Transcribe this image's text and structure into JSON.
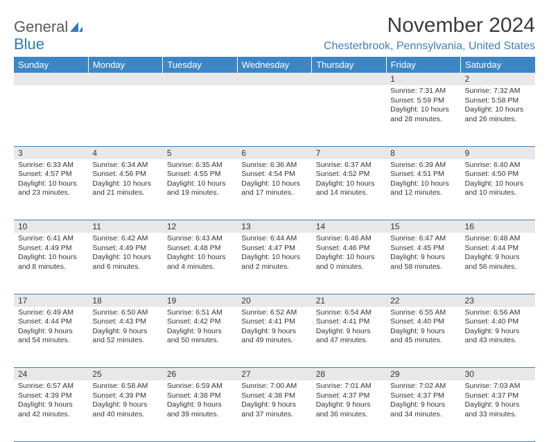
{
  "logo": {
    "gray": "General",
    "blue": "Blue"
  },
  "title": "November 2024",
  "location": "Chesterbrook, Pennsylvania, United States",
  "colors": {
    "header_bg": "#3d86c6",
    "header_fg": "#ffffff",
    "daynum_bg": "#e8e8e8",
    "divider": "#3d7fb8",
    "logo_gray": "#5a5a5a",
    "logo_blue": "#2d7bc0",
    "location_color": "#3d7fb8",
    "text": "#333333",
    "bg": "#ffffff"
  },
  "weekdays": [
    "Sunday",
    "Monday",
    "Tuesday",
    "Wednesday",
    "Thursday",
    "Friday",
    "Saturday"
  ],
  "weeks": [
    [
      {
        "num": "",
        "sunrise": "",
        "sunset": "",
        "daylight": ""
      },
      {
        "num": "",
        "sunrise": "",
        "sunset": "",
        "daylight": ""
      },
      {
        "num": "",
        "sunrise": "",
        "sunset": "",
        "daylight": ""
      },
      {
        "num": "",
        "sunrise": "",
        "sunset": "",
        "daylight": ""
      },
      {
        "num": "",
        "sunrise": "",
        "sunset": "",
        "daylight": ""
      },
      {
        "num": "1",
        "sunrise": "Sunrise: 7:31 AM",
        "sunset": "Sunset: 5:59 PM",
        "daylight": "Daylight: 10 hours and 28 minutes."
      },
      {
        "num": "2",
        "sunrise": "Sunrise: 7:32 AM",
        "sunset": "Sunset: 5:58 PM",
        "daylight": "Daylight: 10 hours and 26 minutes."
      }
    ],
    [
      {
        "num": "3",
        "sunrise": "Sunrise: 6:33 AM",
        "sunset": "Sunset: 4:57 PM",
        "daylight": "Daylight: 10 hours and 23 minutes."
      },
      {
        "num": "4",
        "sunrise": "Sunrise: 6:34 AM",
        "sunset": "Sunset: 4:56 PM",
        "daylight": "Daylight: 10 hours and 21 minutes."
      },
      {
        "num": "5",
        "sunrise": "Sunrise: 6:35 AM",
        "sunset": "Sunset: 4:55 PM",
        "daylight": "Daylight: 10 hours and 19 minutes."
      },
      {
        "num": "6",
        "sunrise": "Sunrise: 6:36 AM",
        "sunset": "Sunset: 4:54 PM",
        "daylight": "Daylight: 10 hours and 17 minutes."
      },
      {
        "num": "7",
        "sunrise": "Sunrise: 6:37 AM",
        "sunset": "Sunset: 4:52 PM",
        "daylight": "Daylight: 10 hours and 14 minutes."
      },
      {
        "num": "8",
        "sunrise": "Sunrise: 6:39 AM",
        "sunset": "Sunset: 4:51 PM",
        "daylight": "Daylight: 10 hours and 12 minutes."
      },
      {
        "num": "9",
        "sunrise": "Sunrise: 6:40 AM",
        "sunset": "Sunset: 4:50 PM",
        "daylight": "Daylight: 10 hours and 10 minutes."
      }
    ],
    [
      {
        "num": "10",
        "sunrise": "Sunrise: 6:41 AM",
        "sunset": "Sunset: 4:49 PM",
        "daylight": "Daylight: 10 hours and 8 minutes."
      },
      {
        "num": "11",
        "sunrise": "Sunrise: 6:42 AM",
        "sunset": "Sunset: 4:49 PM",
        "daylight": "Daylight: 10 hours and 6 minutes."
      },
      {
        "num": "12",
        "sunrise": "Sunrise: 6:43 AM",
        "sunset": "Sunset: 4:48 PM",
        "daylight": "Daylight: 10 hours and 4 minutes."
      },
      {
        "num": "13",
        "sunrise": "Sunrise: 6:44 AM",
        "sunset": "Sunset: 4:47 PM",
        "daylight": "Daylight: 10 hours and 2 minutes."
      },
      {
        "num": "14",
        "sunrise": "Sunrise: 6:46 AM",
        "sunset": "Sunset: 4:46 PM",
        "daylight": "Daylight: 10 hours and 0 minutes."
      },
      {
        "num": "15",
        "sunrise": "Sunrise: 6:47 AM",
        "sunset": "Sunset: 4:45 PM",
        "daylight": "Daylight: 9 hours and 58 minutes."
      },
      {
        "num": "16",
        "sunrise": "Sunrise: 6:48 AM",
        "sunset": "Sunset: 4:44 PM",
        "daylight": "Daylight: 9 hours and 56 minutes."
      }
    ],
    [
      {
        "num": "17",
        "sunrise": "Sunrise: 6:49 AM",
        "sunset": "Sunset: 4:44 PM",
        "daylight": "Daylight: 9 hours and 54 minutes."
      },
      {
        "num": "18",
        "sunrise": "Sunrise: 6:50 AM",
        "sunset": "Sunset: 4:43 PM",
        "daylight": "Daylight: 9 hours and 52 minutes."
      },
      {
        "num": "19",
        "sunrise": "Sunrise: 6:51 AM",
        "sunset": "Sunset: 4:42 PM",
        "daylight": "Daylight: 9 hours and 50 minutes."
      },
      {
        "num": "20",
        "sunrise": "Sunrise: 6:52 AM",
        "sunset": "Sunset: 4:41 PM",
        "daylight": "Daylight: 9 hours and 49 minutes."
      },
      {
        "num": "21",
        "sunrise": "Sunrise: 6:54 AM",
        "sunset": "Sunset: 4:41 PM",
        "daylight": "Daylight: 9 hours and 47 minutes."
      },
      {
        "num": "22",
        "sunrise": "Sunrise: 6:55 AM",
        "sunset": "Sunset: 4:40 PM",
        "daylight": "Daylight: 9 hours and 45 minutes."
      },
      {
        "num": "23",
        "sunrise": "Sunrise: 6:56 AM",
        "sunset": "Sunset: 4:40 PM",
        "daylight": "Daylight: 9 hours and 43 minutes."
      }
    ],
    [
      {
        "num": "24",
        "sunrise": "Sunrise: 6:57 AM",
        "sunset": "Sunset: 4:39 PM",
        "daylight": "Daylight: 9 hours and 42 minutes."
      },
      {
        "num": "25",
        "sunrise": "Sunrise: 6:58 AM",
        "sunset": "Sunset: 4:39 PM",
        "daylight": "Daylight: 9 hours and 40 minutes."
      },
      {
        "num": "26",
        "sunrise": "Sunrise: 6:59 AM",
        "sunset": "Sunset: 4:38 PM",
        "daylight": "Daylight: 9 hours and 39 minutes."
      },
      {
        "num": "27",
        "sunrise": "Sunrise: 7:00 AM",
        "sunset": "Sunset: 4:38 PM",
        "daylight": "Daylight: 9 hours and 37 minutes."
      },
      {
        "num": "28",
        "sunrise": "Sunrise: 7:01 AM",
        "sunset": "Sunset: 4:37 PM",
        "daylight": "Daylight: 9 hours and 36 minutes."
      },
      {
        "num": "29",
        "sunrise": "Sunrise: 7:02 AM",
        "sunset": "Sunset: 4:37 PM",
        "daylight": "Daylight: 9 hours and 34 minutes."
      },
      {
        "num": "30",
        "sunrise": "Sunrise: 7:03 AM",
        "sunset": "Sunset: 4:37 PM",
        "daylight": "Daylight: 9 hours and 33 minutes."
      }
    ]
  ]
}
